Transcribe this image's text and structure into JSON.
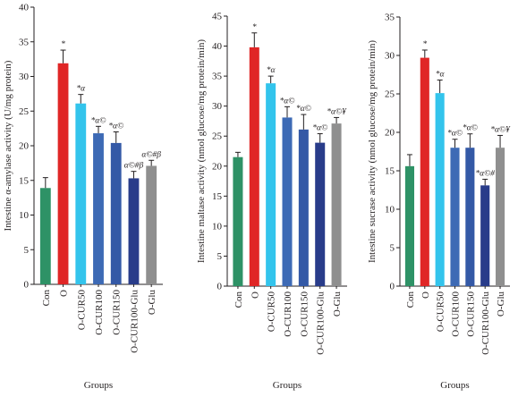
{
  "chart_data": [
    {
      "type": "bar",
      "ylabel": "Intestine α-amylase activity (U/mg protein)",
      "xlabel": "Groups",
      "ylim": [
        0,
        40
      ],
      "yticks": [
        "0",
        "5",
        "10",
        "15",
        "20",
        "25",
        "30",
        "35",
        "40"
      ],
      "categories": [
        "Con",
        "O",
        "O-CUR50",
        "O-CUR100",
        "O-CUR150",
        "O-CUR100-Glu",
        "O-Glu"
      ],
      "values": [
        13.9,
        31.9,
        26.1,
        21.8,
        20.4,
        15.3,
        17.1
      ],
      "errors": [
        1.5,
        1.9,
        1.3,
        1.0,
        1.6,
        1.0,
        0.8
      ],
      "annotations": [
        "",
        "*",
        "*α",
        "*α©",
        "*α©",
        "α©#β",
        "α©#β"
      ],
      "colors": [
        "#2e9266",
        "#e02626",
        "#33c4ec",
        "#3d6ab5",
        "#3459a6",
        "#293c8a",
        "#8f8f8f"
      ]
    },
    {
      "type": "bar",
      "ylabel": "Intestine maltase activity (nmol glucose/mg protein/min)",
      "xlabel": "Groups",
      "ylim": [
        0,
        45
      ],
      "yticks": [
        "0",
        "5",
        "10",
        "15",
        "20",
        "25",
        "30",
        "35",
        "40",
        "45"
      ],
      "categories": [
        "Con",
        "O",
        "O-CUR50",
        "O-CUR100",
        "O-CUR150",
        "O-CUR100-Glu",
        "O-Glu"
      ],
      "values": [
        21.5,
        39.8,
        33.8,
        28.1,
        26.1,
        23.9,
        27.1
      ],
      "errors": [
        0.8,
        2.4,
        1.2,
        1.8,
        2.5,
        1.5,
        1.0
      ],
      "annotations": [
        "",
        "*",
        "*α",
        "*α©",
        "*α©",
        "*α©",
        "*α©¥"
      ],
      "colors": [
        "#2e9266",
        "#e02626",
        "#33c4ec",
        "#3d6ab5",
        "#3459a6",
        "#293c8a",
        "#8f8f8f"
      ]
    },
    {
      "type": "bar",
      "ylabel": "Intestine sucrase activity (nmol glucose/mg protein/min)",
      "xlabel": "Groups",
      "ylim": [
        0,
        35
      ],
      "yticks": [
        "0",
        "5",
        "10",
        "15",
        "20",
        "25",
        "30",
        "35"
      ],
      "categories": [
        "Con",
        "O",
        "O-CUR50",
        "O-CUR100",
        "O-CUR150",
        "O-CUR100-Glu",
        "O-Glu"
      ],
      "values": [
        15.6,
        29.7,
        25.1,
        18.0,
        18.0,
        13.1,
        18.0
      ],
      "errors": [
        1.5,
        1.0,
        1.7,
        1.1,
        1.8,
        0.8,
        1.6
      ],
      "annotations": [
        "",
        "*",
        "*α",
        "*α©",
        "*α©",
        "*α©#",
        "*α©¥"
      ],
      "colors": [
        "#2e9266",
        "#e02626",
        "#33c4ec",
        "#3d6ab5",
        "#3459a6",
        "#293c8a",
        "#8f8f8f"
      ]
    }
  ]
}
